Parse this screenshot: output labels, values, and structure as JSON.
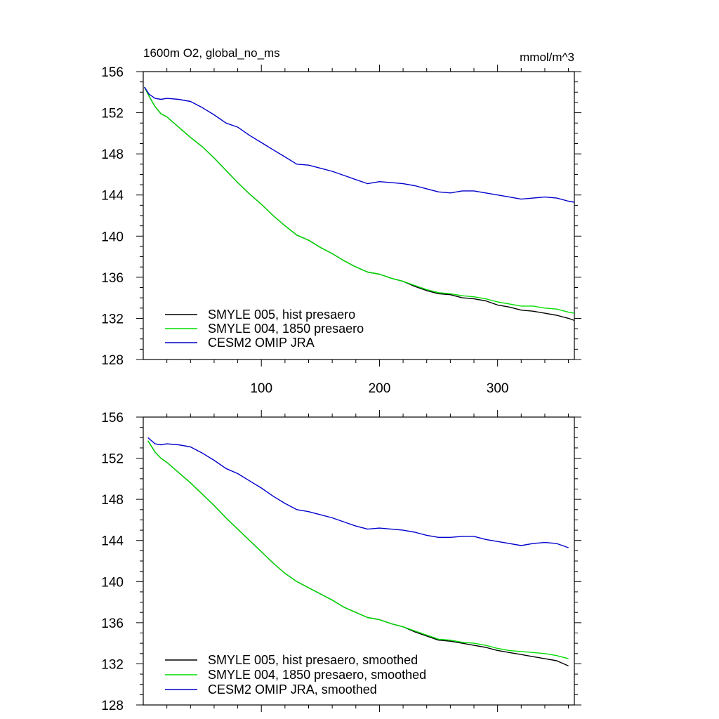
{
  "chart_data": [
    {
      "type": "line",
      "title": "1600m O2, global_no_ms",
      "units": "mmol/m^3",
      "xlim": [
        0,
        365
      ],
      "ylim": [
        128,
        156
      ],
      "yticks": [
        "128",
        "132",
        "136",
        "140",
        "144",
        "148",
        "152",
        "156"
      ],
      "xticks": [
        "100",
        "200",
        "300"
      ],
      "legend_position": "bottom-left",
      "series": [
        {
          "name": "SMYLE 005, hist presaero",
          "color": "#000000",
          "x": [
            1,
            5,
            10,
            15,
            20,
            30,
            40,
            50,
            60,
            70,
            80,
            90,
            100,
            110,
            120,
            130,
            140,
            150,
            160,
            170,
            180,
            190,
            200,
            210,
            220,
            230,
            240,
            250,
            260,
            270,
            280,
            290,
            300,
            310,
            320,
            330,
            340,
            350,
            360,
            365
          ],
          "values": [
            154.5,
            153.6,
            152.6,
            151.9,
            151.6,
            150.6,
            149.6,
            148.7,
            147.6,
            146.4,
            145.2,
            144.1,
            143.1,
            142.0,
            141.0,
            140.1,
            139.6,
            138.9,
            138.3,
            137.6,
            137.0,
            136.5,
            136.3,
            135.9,
            135.6,
            135.1,
            134.7,
            134.4,
            134.3,
            134.0,
            133.9,
            133.7,
            133.3,
            133.1,
            132.8,
            132.7,
            132.5,
            132.3,
            132.0,
            131.8
          ]
        },
        {
          "name": "SMYLE 004, 1850 presaero",
          "color": "#00dd00",
          "x": [
            1,
            5,
            10,
            15,
            20,
            30,
            40,
            50,
            60,
            70,
            80,
            90,
            100,
            110,
            120,
            130,
            140,
            150,
            160,
            170,
            180,
            190,
            200,
            210,
            220,
            230,
            240,
            250,
            260,
            270,
            280,
            290,
            300,
            310,
            320,
            330,
            340,
            350,
            360,
            365
          ],
          "values": [
            154.5,
            153.6,
            152.6,
            151.9,
            151.6,
            150.6,
            149.6,
            148.7,
            147.6,
            146.4,
            145.2,
            144.1,
            143.1,
            142.0,
            141.0,
            140.1,
            139.6,
            138.9,
            138.3,
            137.6,
            137.0,
            136.5,
            136.3,
            135.9,
            135.6,
            135.2,
            134.8,
            134.5,
            134.4,
            134.2,
            134.1,
            133.9,
            133.6,
            133.4,
            133.2,
            133.2,
            133.0,
            132.9,
            132.6,
            132.5
          ]
        },
        {
          "name": "CESM2 OMIP JRA",
          "color": "#0000cc",
          "x": [
            1,
            5,
            10,
            15,
            20,
            30,
            40,
            50,
            60,
            70,
            80,
            90,
            100,
            110,
            120,
            130,
            140,
            150,
            160,
            170,
            180,
            190,
            200,
            210,
            220,
            230,
            240,
            250,
            260,
            270,
            280,
            290,
            300,
            310,
            320,
            330,
            340,
            350,
            360,
            365
          ],
          "values": [
            154.5,
            153.8,
            153.4,
            153.3,
            153.4,
            153.3,
            153.1,
            152.5,
            151.8,
            151.0,
            150.6,
            149.8,
            149.1,
            148.4,
            147.7,
            147.0,
            146.9,
            146.6,
            146.3,
            145.9,
            145.5,
            145.1,
            145.3,
            145.2,
            145.1,
            144.9,
            144.6,
            144.3,
            144.2,
            144.4,
            144.4,
            144.2,
            144.0,
            143.8,
            143.6,
            143.7,
            143.8,
            143.7,
            143.4,
            143.3
          ]
        }
      ]
    },
    {
      "type": "line",
      "title": "",
      "xlim": [
        0,
        365
      ],
      "ylim": [
        128,
        156
      ],
      "yticks": [
        "128",
        "132",
        "136",
        "140",
        "144",
        "148",
        "152",
        "156"
      ],
      "xticks": [],
      "legend_position": "bottom-left",
      "series": [
        {
          "name": "SMYLE 005, hist presaero, smoothed",
          "color": "#000000",
          "x": [
            4,
            10,
            15,
            20,
            30,
            40,
            50,
            60,
            70,
            80,
            90,
            100,
            110,
            120,
            130,
            140,
            150,
            160,
            170,
            180,
            190,
            200,
            210,
            220,
            230,
            240,
            250,
            260,
            270,
            280,
            290,
            300,
            310,
            320,
            330,
            340,
            350,
            360
          ],
          "values": [
            153.7,
            152.6,
            152.0,
            151.6,
            150.6,
            149.6,
            148.5,
            147.4,
            146.2,
            145.1,
            144.0,
            142.9,
            141.8,
            140.8,
            140.0,
            139.4,
            138.8,
            138.2,
            137.5,
            137.0,
            136.5,
            136.3,
            135.9,
            135.6,
            135.1,
            134.7,
            134.3,
            134.2,
            134.0,
            133.8,
            133.6,
            133.3,
            133.1,
            132.9,
            132.7,
            132.5,
            132.3,
            131.8
          ]
        },
        {
          "name": "SMYLE 004, 1850 presaero, smoothed",
          "color": "#00dd00",
          "x": [
            4,
            10,
            15,
            20,
            30,
            40,
            50,
            60,
            70,
            80,
            90,
            100,
            110,
            120,
            130,
            140,
            150,
            160,
            170,
            180,
            190,
            200,
            210,
            220,
            230,
            240,
            250,
            260,
            270,
            280,
            290,
            300,
            310,
            320,
            330,
            340,
            350,
            360
          ],
          "values": [
            153.7,
            152.6,
            152.0,
            151.6,
            150.6,
            149.6,
            148.5,
            147.4,
            146.2,
            145.1,
            144.0,
            142.9,
            141.8,
            140.8,
            140.0,
            139.4,
            138.8,
            138.2,
            137.5,
            137.0,
            136.5,
            136.3,
            135.9,
            135.6,
            135.2,
            134.8,
            134.4,
            134.3,
            134.1,
            134.0,
            133.8,
            133.5,
            133.3,
            133.2,
            133.1,
            133.0,
            132.8,
            132.5
          ]
        },
        {
          "name": "CESM2 OMIP JRA, smoothed",
          "color": "#0000cc",
          "x": [
            4,
            10,
            15,
            20,
            30,
            40,
            50,
            60,
            70,
            80,
            90,
            100,
            110,
            120,
            130,
            140,
            150,
            160,
            170,
            180,
            190,
            200,
            210,
            220,
            230,
            240,
            250,
            260,
            270,
            280,
            290,
            300,
            310,
            320,
            330,
            340,
            350,
            360
          ],
          "values": [
            154.0,
            153.4,
            153.3,
            153.4,
            153.3,
            153.1,
            152.5,
            151.8,
            151.0,
            150.5,
            149.8,
            149.1,
            148.3,
            147.6,
            147.0,
            146.8,
            146.5,
            146.2,
            145.8,
            145.4,
            145.1,
            145.2,
            145.1,
            145.0,
            144.8,
            144.5,
            144.3,
            144.3,
            144.4,
            144.4,
            144.1,
            143.9,
            143.7,
            143.5,
            143.7,
            143.8,
            143.7,
            143.3
          ]
        }
      ]
    }
  ]
}
